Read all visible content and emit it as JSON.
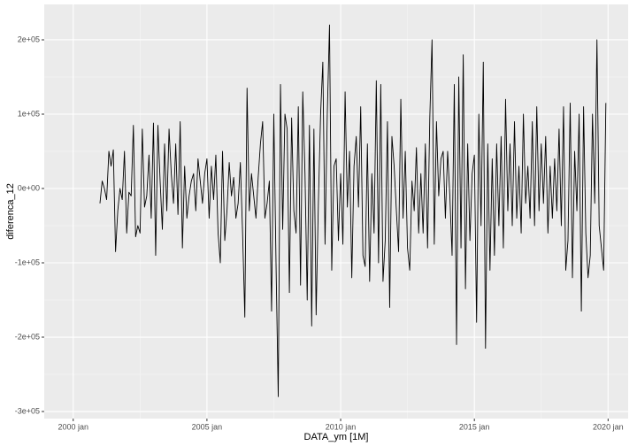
{
  "chart_data": {
    "type": "line",
    "x_label": "DATA_ym [1M]",
    "y_label": "diferenca_12",
    "color": "#000000",
    "grid": true,
    "x": [
      "2001-01",
      "2001-02",
      "2001-03",
      "2001-04",
      "2001-05",
      "2001-06",
      "2001-07",
      "2001-08",
      "2001-09",
      "2001-10",
      "2001-11",
      "2001-12",
      "2002-01",
      "2002-02",
      "2002-03",
      "2002-04",
      "2002-05",
      "2002-06",
      "2002-07",
      "2002-08",
      "2002-09",
      "2002-10",
      "2002-11",
      "2002-12",
      "2003-01",
      "2003-02",
      "2003-03",
      "2003-04",
      "2003-05",
      "2003-06",
      "2003-07",
      "2003-08",
      "2003-09",
      "2003-10",
      "2003-11",
      "2003-12",
      "2004-01",
      "2004-02",
      "2004-03",
      "2004-04",
      "2004-05",
      "2004-06",
      "2004-07",
      "2004-08",
      "2004-09",
      "2004-10",
      "2004-11",
      "2004-12",
      "2005-01",
      "2005-02",
      "2005-03",
      "2005-04",
      "2005-05",
      "2005-06",
      "2005-07",
      "2005-08",
      "2005-09",
      "2005-10",
      "2005-11",
      "2005-12",
      "2006-01",
      "2006-02",
      "2006-03",
      "2006-04",
      "2006-05",
      "2006-06",
      "2006-07",
      "2006-08",
      "2006-09",
      "2006-10",
      "2006-11",
      "2006-12",
      "2007-01",
      "2007-02",
      "2007-03",
      "2007-04",
      "2007-05",
      "2007-06",
      "2007-07",
      "2007-08",
      "2007-09",
      "2007-10",
      "2007-11",
      "2007-12",
      "2008-01",
      "2008-02",
      "2008-03",
      "2008-04",
      "2008-05",
      "2008-06",
      "2008-07",
      "2008-08",
      "2008-09",
      "2008-10",
      "2008-11",
      "2008-12",
      "2009-01",
      "2009-02",
      "2009-03",
      "2009-04",
      "2009-05",
      "2009-06",
      "2009-07",
      "2009-08",
      "2009-09",
      "2009-10",
      "2009-11",
      "2009-12",
      "2010-01",
      "2010-02",
      "2010-03",
      "2010-04",
      "2010-05",
      "2010-06",
      "2010-07",
      "2010-08",
      "2010-09",
      "2010-10",
      "2010-11",
      "2010-12",
      "2011-01",
      "2011-02",
      "2011-03",
      "2011-04",
      "2011-05",
      "2011-06",
      "2011-07",
      "2011-08",
      "2011-09",
      "2011-10",
      "2011-11",
      "2011-12",
      "2012-01",
      "2012-02",
      "2012-03",
      "2012-04",
      "2012-05",
      "2012-06",
      "2012-07",
      "2012-08",
      "2012-09",
      "2012-10",
      "2012-11",
      "2012-12",
      "2013-01",
      "2013-02",
      "2013-03",
      "2013-04",
      "2013-05",
      "2013-06",
      "2013-07",
      "2013-08",
      "2013-09",
      "2013-10",
      "2013-11",
      "2013-12",
      "2014-01",
      "2014-02",
      "2014-03",
      "2014-04",
      "2014-05",
      "2014-06",
      "2014-07",
      "2014-08",
      "2014-09",
      "2014-10",
      "2014-11",
      "2014-12",
      "2015-01",
      "2015-02",
      "2015-03",
      "2015-04",
      "2015-05",
      "2015-06",
      "2015-07",
      "2015-08",
      "2015-09",
      "2015-10",
      "2015-11",
      "2015-12",
      "2016-01",
      "2016-02",
      "2016-03",
      "2016-04",
      "2016-05",
      "2016-06",
      "2016-07",
      "2016-08",
      "2016-09",
      "2016-10",
      "2016-11",
      "2016-12",
      "2017-01",
      "2017-02",
      "2017-03",
      "2017-04",
      "2017-05",
      "2017-06",
      "2017-07",
      "2017-08",
      "2017-09",
      "2017-10",
      "2017-11",
      "2017-12",
      "2018-01",
      "2018-02",
      "2018-03",
      "2018-04",
      "2018-05",
      "2018-06",
      "2018-07",
      "2018-08",
      "2018-09",
      "2018-10",
      "2018-11",
      "2018-12",
      "2019-01",
      "2019-02",
      "2019-03",
      "2019-04",
      "2019-05",
      "2019-06",
      "2019-07",
      "2019-08",
      "2019-09",
      "2019-10",
      "2019-11",
      "2019-12"
    ],
    "values": [
      -20000,
      10000,
      0,
      -15000,
      50000,
      30000,
      52000,
      -85000,
      -30000,
      0,
      -15000,
      50000,
      -60000,
      -5000,
      -10000,
      85000,
      -65000,
      -50000,
      -60000,
      80000,
      -25000,
      -10000,
      45000,
      -40000,
      88000,
      -90000,
      85000,
      10000,
      -55000,
      60000,
      -30000,
      80000,
      20000,
      -20000,
      60000,
      -35000,
      90000,
      -80000,
      30000,
      -40000,
      -10000,
      10000,
      20000,
      -30000,
      40000,
      10000,
      -20000,
      20000,
      40000,
      -40000,
      30000,
      -15000,
      45000,
      -60000,
      -100000,
      50000,
      -70000,
      -30000,
      35000,
      -10000,
      15000,
      -40000,
      -20000,
      35000,
      -60000,
      -173000,
      135000,
      -30000,
      20000,
      -10000,
      -40000,
      15000,
      60000,
      90000,
      -40000,
      -20000,
      10000,
      -165000,
      100000,
      -100000,
      -280000,
      140000,
      -55000,
      100000,
      80000,
      -140000,
      95000,
      -30000,
      -60000,
      110000,
      -130000,
      130000,
      20000,
      -150000,
      85000,
      -185000,
      80000,
      -170000,
      -20000,
      100000,
      170000,
      -75000,
      100000,
      220000,
      -110000,
      30000,
      40000,
      -70000,
      20000,
      -75000,
      130000,
      -25000,
      50000,
      -120000,
      30000,
      70000,
      -25000,
      110000,
      -90000,
      -105000,
      60000,
      -125000,
      20000,
      -60000,
      145000,
      -100000,
      140000,
      -125000,
      -70000,
      90000,
      -160000,
      70000,
      30000,
      -30000,
      -85000,
      120000,
      -40000,
      50000,
      -80000,
      -110000,
      10000,
      -30000,
      55000,
      -60000,
      20000,
      -60000,
      60000,
      -80000,
      95000,
      200000,
      -75000,
      90000,
      -10000,
      40000,
      50000,
      -40000,
      50000,
      -10000,
      -90000,
      140000,
      -210000,
      150000,
      -80000,
      180000,
      -135000,
      60000,
      -70000,
      20000,
      45000,
      -180000,
      100000,
      -50000,
      170000,
      -215000,
      60000,
      -110000,
      40000,
      -90000,
      60000,
      -50000,
      70000,
      -80000,
      120000,
      -30000,
      60000,
      -50000,
      90000,
      -40000,
      30000,
      -60000,
      100000,
      -20000,
      30000,
      -40000,
      90000,
      -50000,
      110000,
      -30000,
      60000,
      -20000,
      70000,
      -60000,
      30000,
      -40000,
      40000,
      -30000,
      80000,
      -50000,
      110000,
      -110000,
      -70000,
      115000,
      -120000,
      50000,
      -30000,
      100000,
      -165000,
      110000,
      -60000,
      -120000,
      -90000,
      100000,
      -20000,
      200000,
      -50000,
      -80000,
      -110000,
      115000
    ],
    "xlim": [
      "1998-12",
      "2020-10"
    ],
    "xticks": [
      {
        "value": "2000-01",
        "label": "2000 jan"
      },
      {
        "value": "2005-01",
        "label": "2005 jan"
      },
      {
        "value": "2010-01",
        "label": "2010 jan"
      },
      {
        "value": "2015-01",
        "label": "2015 jan"
      },
      {
        "value": "2020-01",
        "label": "2020 jan"
      }
    ],
    "ylim": [
      -309500,
      247600
    ],
    "yticks": [
      {
        "value": -300000,
        "label": "-3e+05"
      },
      {
        "value": -200000,
        "label": "-2e+05"
      },
      {
        "value": -100000,
        "label": "-1e+05"
      },
      {
        "value": 0,
        "label": "0e+00"
      },
      {
        "value": 100000,
        "label": "1e+05"
      },
      {
        "value": 200000,
        "label": "2e+05"
      }
    ]
  }
}
